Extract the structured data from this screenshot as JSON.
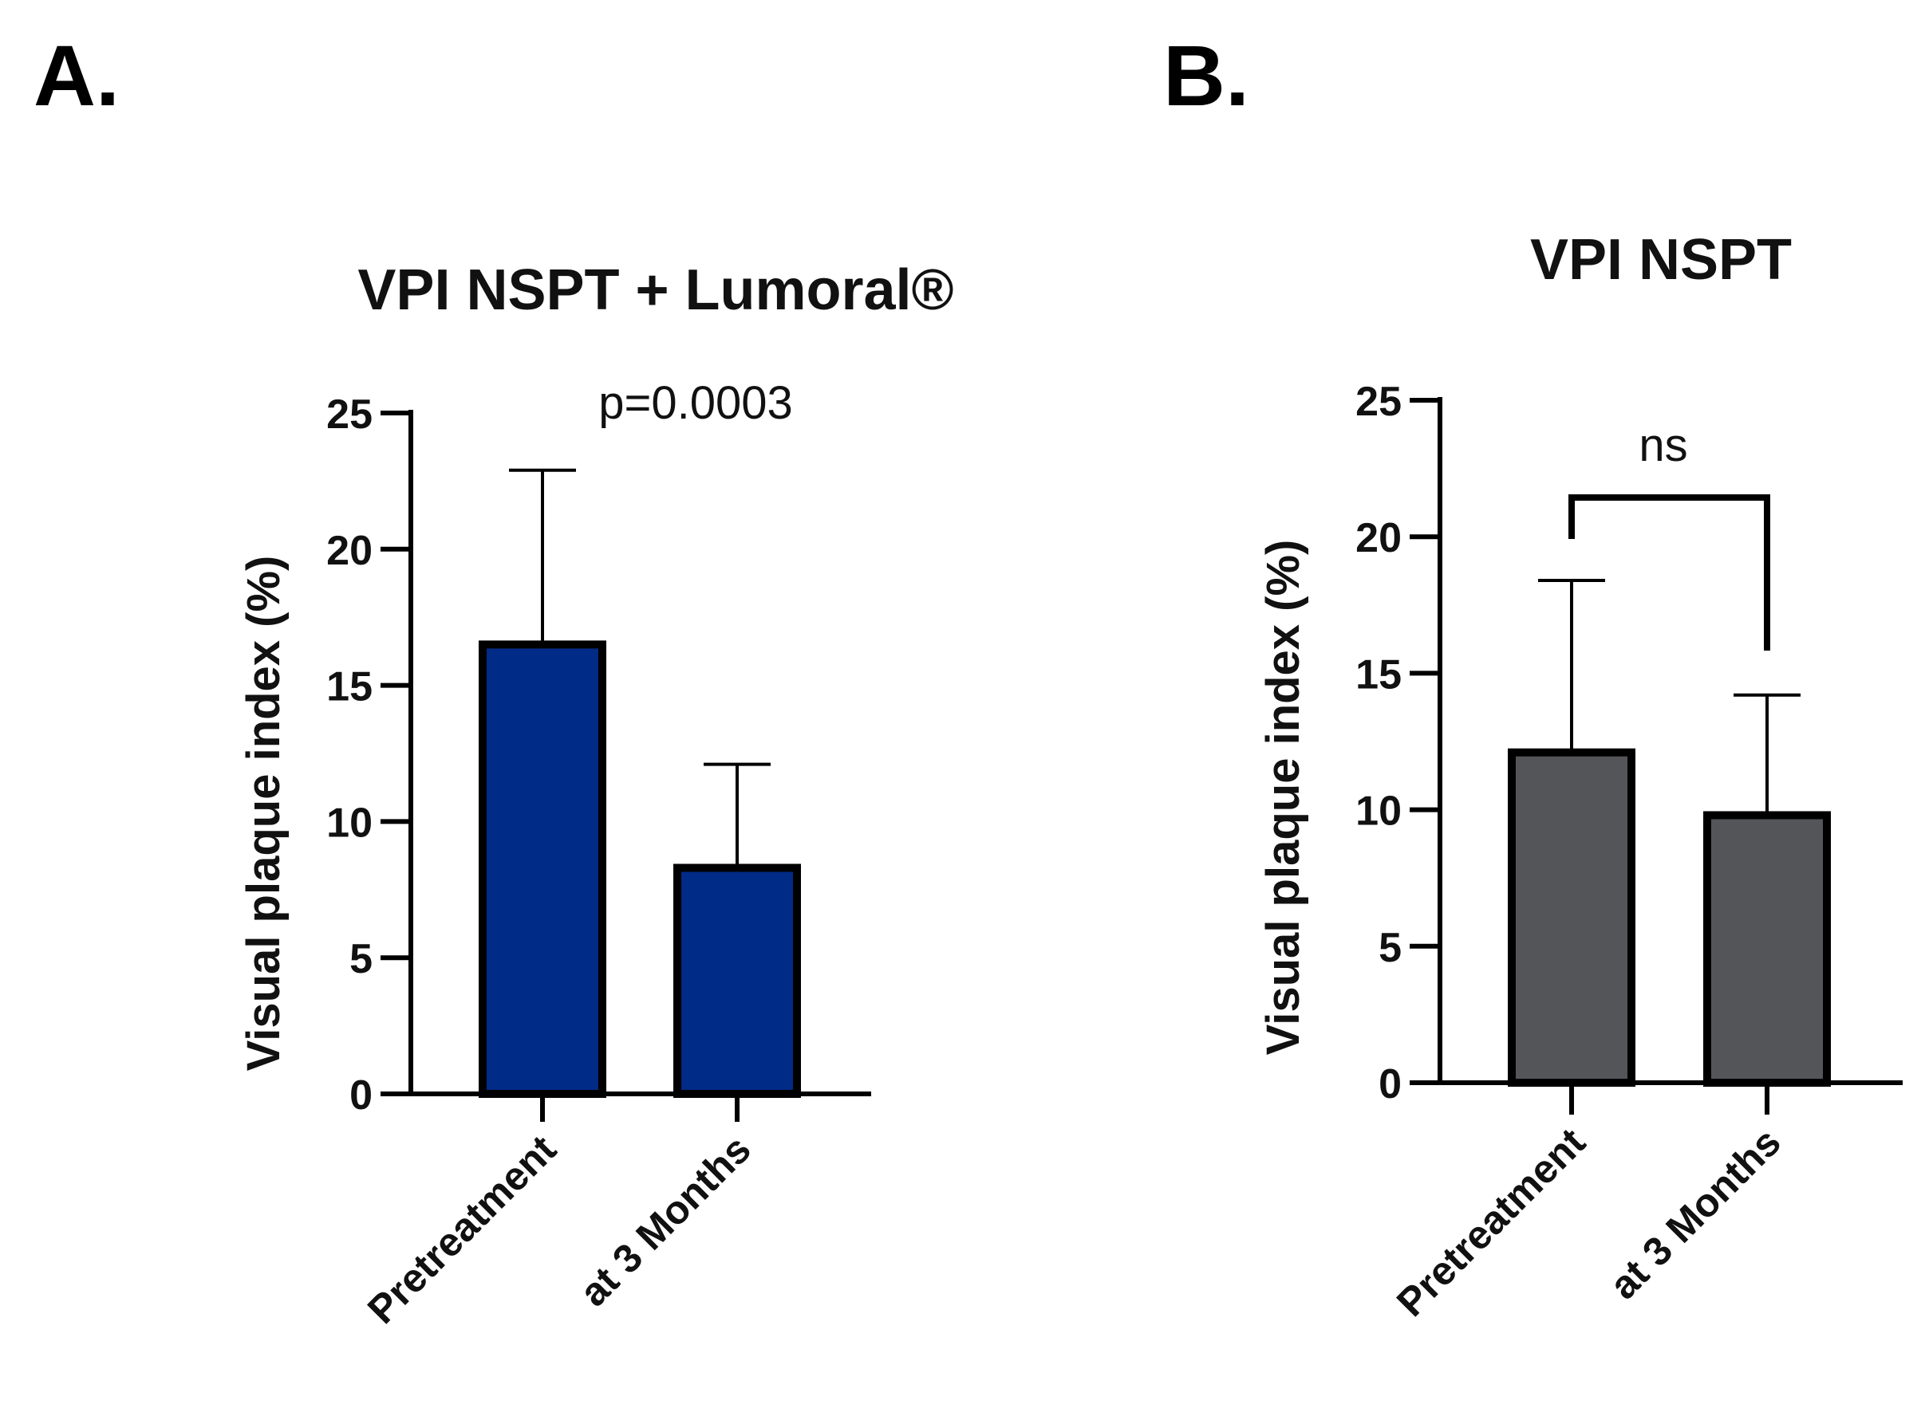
{
  "chart_data": [
    {
      "panel": "A.",
      "type": "bar",
      "title": "VPI NSPT + Lumoral®",
      "ylabel": "Visual plaque index (%)",
      "xlabel": "",
      "ylim": [
        0,
        25
      ],
      "yticks": [
        0,
        5,
        10,
        15,
        20,
        25
      ],
      "categories": [
        "Pretreatment",
        "at 3 Months"
      ],
      "values": [
        16.5,
        8.3
      ],
      "error_upper": [
        22.9,
        12.1
      ],
      "bar_color": "#002b86",
      "annotation": "p=0.0003",
      "bracket": false
    },
    {
      "panel": "B.",
      "type": "bar",
      "title": "VPI NSPT",
      "ylabel": "Visual plaque index (%)",
      "xlabel": "",
      "ylim": [
        0,
        25
      ],
      "yticks": [
        0,
        5,
        10,
        15,
        20,
        25
      ],
      "categories": [
        "Pretreatment",
        "at 3 Months"
      ],
      "values": [
        12.1,
        9.8
      ],
      "error_upper": [
        18.4,
        14.2
      ],
      "bar_color": "#545559",
      "annotation": "ns",
      "bracket": true
    }
  ]
}
